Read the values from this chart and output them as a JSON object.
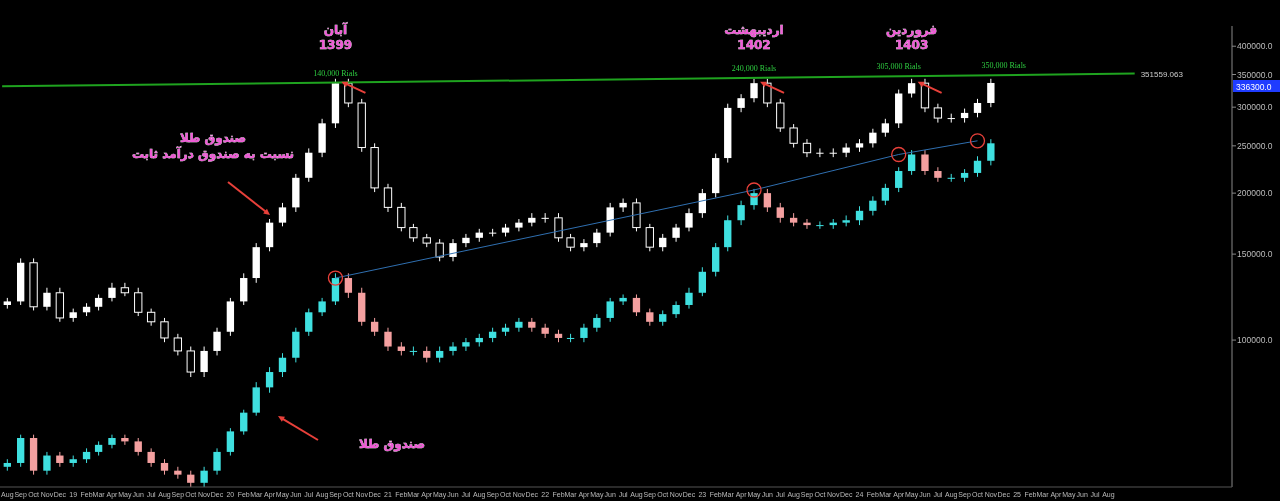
{
  "chart_data": {
    "type": "candlestick",
    "log": "y",
    "xlim": [
      "2018-07-15",
      "2026-05-15"
    ],
    "xticks": [
      {
        "value": "2018-08",
        "label": "Aug"
      },
      {
        "value": "2018-09",
        "label": "Sep"
      },
      {
        "value": "2018-10",
        "label": "Oct"
      },
      {
        "value": "2018-11",
        "label": "Nov"
      },
      {
        "value": "2018-12",
        "label": "Dec"
      },
      {
        "value": "2019-01",
        "label": "19"
      },
      {
        "value": "2019-02",
        "label": "Feb"
      },
      {
        "value": "2019-03",
        "label": "Mar"
      },
      {
        "value": "2019-04",
        "label": "Apr"
      },
      {
        "value": "2019-05",
        "label": "May"
      },
      {
        "value": "2019-06",
        "label": "Jun"
      },
      {
        "value": "2019-07",
        "label": "Jul"
      },
      {
        "value": "2019-08",
        "label": "Aug"
      },
      {
        "value": "2019-09",
        "label": "Sep"
      },
      {
        "value": "2019-10",
        "label": "Oct"
      },
      {
        "value": "2019-11",
        "label": "Nov"
      },
      {
        "value": "2019-12",
        "label": "Dec"
      },
      {
        "value": "2020-01",
        "label": "20"
      },
      {
        "value": "2020-02",
        "label": "Feb"
      },
      {
        "value": "2020-03",
        "label": "Mar"
      },
      {
        "value": "2020-04",
        "label": "Apr"
      },
      {
        "value": "2020-05",
        "label": "May"
      },
      {
        "value": "2020-06",
        "label": "Jun"
      },
      {
        "value": "2020-07",
        "label": "Jul"
      },
      {
        "value": "2020-08",
        "label": "Aug"
      },
      {
        "value": "2020-09",
        "label": "Sep"
      },
      {
        "value": "2020-10",
        "label": "Oct"
      },
      {
        "value": "2020-11",
        "label": "Nov"
      },
      {
        "value": "2020-12",
        "label": "Dec"
      },
      {
        "value": "2021-01",
        "label": "21"
      },
      {
        "value": "2021-02",
        "label": "Feb"
      },
      {
        "value": "2021-03",
        "label": "Mar"
      },
      {
        "value": "2021-04",
        "label": "Apr"
      },
      {
        "value": "2021-05",
        "label": "May"
      },
      {
        "value": "2021-06",
        "label": "Jun"
      },
      {
        "value": "2021-07",
        "label": "Jul"
      },
      {
        "value": "2021-08",
        "label": "Aug"
      },
      {
        "value": "2021-09",
        "label": "Sep"
      },
      {
        "value": "2021-10",
        "label": "Oct"
      },
      {
        "value": "2021-11",
        "label": "Nov"
      },
      {
        "value": "2021-12",
        "label": "Dec"
      },
      {
        "value": "2022-01",
        "label": "22"
      },
      {
        "value": "2022-02",
        "label": "Feb"
      },
      {
        "value": "2022-03",
        "label": "Mar"
      },
      {
        "value": "2022-04",
        "label": "Apr"
      },
      {
        "value": "2022-05",
        "label": "May"
      },
      {
        "value": "2022-06",
        "label": "Jun"
      },
      {
        "value": "2022-07",
        "label": "Jul"
      },
      {
        "value": "2022-08",
        "label": "Aug"
      },
      {
        "value": "2022-09",
        "label": "Sep"
      },
      {
        "value": "2022-10",
        "label": "Oct"
      },
      {
        "value": "2022-11",
        "label": "Nov"
      },
      {
        "value": "2022-12",
        "label": "Dec"
      },
      {
        "value": "2023-01",
        "label": "23"
      },
      {
        "value": "2023-02",
        "label": "Feb"
      },
      {
        "value": "2023-03",
        "label": "Mar"
      },
      {
        "value": "2023-04",
        "label": "Apr"
      },
      {
        "value": "2023-05",
        "label": "May"
      },
      {
        "value": "2023-06",
        "label": "Jun"
      },
      {
        "value": "2023-07",
        "label": "Jul"
      },
      {
        "value": "2023-08",
        "label": "Aug"
      },
      {
        "value": "2023-09",
        "label": "Sep"
      },
      {
        "value": "2023-10",
        "label": "Oct"
      },
      {
        "value": "2023-11",
        "label": "Nov"
      },
      {
        "value": "2023-12",
        "label": "Dec"
      },
      {
        "value": "2024-01",
        "label": "24"
      },
      {
        "value": "2024-02",
        "label": "Feb"
      },
      {
        "value": "2024-03",
        "label": "Mar"
      },
      {
        "value": "2024-04",
        "label": "Apr"
      },
      {
        "value": "2024-05",
        "label": "May"
      },
      {
        "value": "2024-06",
        "label": "Jun"
      },
      {
        "value": "2024-07",
        "label": "Jul"
      },
      {
        "value": "2024-08",
        "label": "Aug"
      },
      {
        "value": "2024-09",
        "label": "Sep"
      },
      {
        "value": "2024-10",
        "label": "Oct"
      },
      {
        "value": "2024-11",
        "label": "Nov"
      },
      {
        "value": "2024-12",
        "label": "Dec"
      },
      {
        "value": "2025-01",
        "label": "25"
      },
      {
        "value": "2025-02",
        "label": "Feb"
      },
      {
        "value": "2025-03",
        "label": "Mar"
      },
      {
        "value": "2025-04",
        "label": "Apr"
      },
      {
        "value": "2025-05",
        "label": "May"
      },
      {
        "value": "2025-06",
        "label": "Jun"
      },
      {
        "value": "2025-07",
        "label": "Jul"
      },
      {
        "value": "2025-08",
        "label": "Aug"
      }
    ],
    "ylim": [
      50000,
      440000
    ],
    "yticks": [
      {
        "value": 100000,
        "label": "100000.0"
      },
      {
        "value": 150000,
        "label": "150000.0"
      },
      {
        "value": 200000,
        "label": "200000.0"
      },
      {
        "value": 250000,
        "label": "250000.0"
      },
      {
        "value": 300000,
        "label": "300000.0"
      },
      {
        "value": 350000,
        "label": "350000.0"
      },
      {
        "value": 400000,
        "label": "400000.0"
      }
    ],
    "x": [
      "2018-08",
      "2018-09",
      "2018-10",
      "2018-11",
      "2018-12",
      "2019-01",
      "2019-02",
      "2019-03",
      "2019-04",
      "2019-05",
      "2019-06",
      "2019-07",
      "2019-08",
      "2019-09",
      "2019-10",
      "2019-11",
      "2019-12",
      "2020-01",
      "2020-02",
      "2020-03",
      "2020-04",
      "2020-05",
      "2020-06",
      "2020-07",
      "2020-08",
      "2020-09",
      "2020-10",
      "2020-11",
      "2020-12",
      "2021-01",
      "2021-02",
      "2021-03",
      "2021-04",
      "2021-05",
      "2021-06",
      "2021-07",
      "2021-08",
      "2021-09",
      "2021-10",
      "2021-11",
      "2021-12",
      "2022-01",
      "2022-02",
      "2022-03",
      "2022-04",
      "2022-05",
      "2022-06",
      "2022-07",
      "2022-08",
      "2022-09",
      "2022-10",
      "2022-11",
      "2022-12",
      "2023-01",
      "2023-02",
      "2023-03",
      "2023-04",
      "2023-05",
      "2023-06",
      "2023-07",
      "2023-08",
      "2023-09",
      "2023-10",
      "2023-11",
      "2023-12",
      "2024-01",
      "2024-02",
      "2024-03",
      "2024-04",
      "2024-05",
      "2024-06",
      "2024-07",
      "2024-08",
      "2024-09",
      "2024-10",
      "2024-11"
    ],
    "series": [
      {
        "color": "#ffffff",
        "ohlc": [
          [
            118000,
            122000,
            116000,
            120000
          ],
          [
            120000,
            147000,
            118000,
            144000
          ],
          [
            144000,
            147000,
            115000,
            117000
          ],
          [
            117000,
            128000,
            115000,
            125000
          ],
          [
            125000,
            128000,
            109000,
            111000
          ],
          [
            111000,
            116000,
            109000,
            114000
          ],
          [
            114000,
            119000,
            112000,
            117000
          ],
          [
            117000,
            124000,
            115000,
            122000
          ],
          [
            122000,
            131000,
            120000,
            128000
          ],
          [
            128000,
            131000,
            123000,
            125000
          ],
          [
            125000,
            128000,
            112000,
            114000
          ],
          [
            114000,
            116000,
            107000,
            109000
          ],
          [
            109000,
            111000,
            99000,
            101000
          ],
          [
            101000,
            103000,
            93000,
            95000
          ],
          [
            95000,
            97000,
            84000,
            86000
          ],
          [
            86000,
            97000,
            84000,
            95000
          ],
          [
            95000,
            106000,
            93000,
            104000
          ],
          [
            104000,
            122000,
            102000,
            120000
          ],
          [
            120000,
            137000,
            118000,
            134000
          ],
          [
            134000,
            158000,
            131000,
            155000
          ],
          [
            155000,
            177000,
            152000,
            174000
          ],
          [
            174000,
            191000,
            171000,
            187000
          ],
          [
            187000,
            219000,
            183000,
            215000
          ],
          [
            215000,
            247000,
            211000,
            242000
          ],
          [
            242000,
            284000,
            237000,
            278000
          ],
          [
            278000,
            343000,
            272000,
            336000
          ],
          [
            336000,
            343000,
            300000,
            306000
          ],
          [
            306000,
            312000,
            243000,
            248000
          ],
          [
            248000,
            253000,
            201000,
            205000
          ],
          [
            205000,
            209000,
            183000,
            187000
          ],
          [
            187000,
            191000,
            167000,
            170000
          ],
          [
            170000,
            173000,
            159000,
            162000
          ],
          [
            162000,
            165000,
            155000,
            158000
          ],
          [
            158000,
            161000,
            145000,
            148000
          ],
          [
            148000,
            161000,
            145000,
            158000
          ],
          [
            158000,
            165000,
            155000,
            162000
          ],
          [
            162000,
            169000,
            159000,
            166000
          ],
          [
            166000,
            169000,
            163000,
            166000
          ],
          [
            166000,
            173000,
            163000,
            170000
          ],
          [
            170000,
            177000,
            167000,
            174000
          ],
          [
            174000,
            182000,
            171000,
            178000
          ],
          [
            178000,
            182000,
            174000,
            178000
          ],
          [
            178000,
            182000,
            159000,
            162000
          ],
          [
            162000,
            165000,
            152000,
            155000
          ],
          [
            155000,
            161000,
            152000,
            158000
          ],
          [
            158000,
            169000,
            155000,
            166000
          ],
          [
            166000,
            191000,
            163000,
            187000
          ],
          [
            187000,
            195000,
            183000,
            191000
          ],
          [
            191000,
            195000,
            167000,
            170000
          ],
          [
            170000,
            173000,
            152000,
            155000
          ],
          [
            155000,
            165000,
            152000,
            162000
          ],
          [
            162000,
            173000,
            159000,
            170000
          ],
          [
            170000,
            186000,
            167000,
            182000
          ],
          [
            182000,
            204000,
            178000,
            200000
          ],
          [
            200000,
            241000,
            196000,
            236000
          ],
          [
            236000,
            305000,
            231000,
            299000
          ],
          [
            299000,
            319000,
            293000,
            313000
          ],
          [
            313000,
            343000,
            307000,
            336000
          ],
          [
            336000,
            343000,
            300000,
            306000
          ],
          [
            306000,
            312000,
            267000,
            272000
          ],
          [
            272000,
            277000,
            248000,
            253000
          ],
          [
            253000,
            258000,
            237000,
            242000
          ],
          [
            242000,
            247000,
            237000,
            242000
          ],
          [
            242000,
            247000,
            237000,
            242000
          ],
          [
            242000,
            253000,
            237000,
            248000
          ],
          [
            248000,
            258000,
            243000,
            253000
          ],
          [
            253000,
            271000,
            248000,
            266000
          ],
          [
            266000,
            284000,
            261000,
            278000
          ],
          [
            278000,
            326000,
            272000,
            320000
          ],
          [
            320000,
            343000,
            314000,
            336000
          ],
          [
            336000,
            343000,
            293000,
            299000
          ],
          [
            299000,
            305000,
            279000,
            285000
          ],
          [
            285000,
            291000,
            279000,
            285000
          ],
          [
            285000,
            298000,
            279000,
            292000
          ],
          [
            292000,
            312000,
            286000,
            306000
          ],
          [
            306000,
            343000,
            300000,
            336300
          ]
        ]
      },
      {
        "colors": [
          "#3fe0e0",
          "#3fe0e0",
          "#f4a0a0",
          "#3fe0e0",
          "#f4a0a0",
          "#3fe0e0",
          "#3fe0e0",
          "#3fe0e0",
          "#3fe0e0",
          "#f4a0a0",
          "#f4a0a0",
          "#f4a0a0",
          "#f4a0a0",
          "#f4a0a0",
          "#f4a0a0",
          "#3fe0e0",
          "#3fe0e0",
          "#3fe0e0",
          "#3fe0e0",
          "#3fe0e0",
          "#3fe0e0",
          "#3fe0e0",
          "#3fe0e0",
          "#3fe0e0",
          "#3fe0e0",
          "#3fe0e0",
          "#f4a0a0",
          "#f4a0a0",
          "#f4a0a0",
          "#f4a0a0",
          "#f4a0a0",
          "#3fe0e0",
          "#f4a0a0",
          "#3fe0e0",
          "#3fe0e0",
          "#3fe0e0",
          "#3fe0e0",
          "#3fe0e0",
          "#3fe0e0",
          "#3fe0e0",
          "#f4a0a0",
          "#f4a0a0",
          "#f4a0a0",
          "#3fe0e0",
          "#3fe0e0",
          "#3fe0e0",
          "#3fe0e0",
          "#3fe0e0",
          "#f4a0a0",
          "#f4a0a0",
          "#3fe0e0",
          "#3fe0e0",
          "#3fe0e0",
          "#3fe0e0",
          "#3fe0e0",
          "#3fe0e0",
          "#3fe0e0",
          "#3fe0e0",
          "#f4a0a0",
          "#f4a0a0",
          "#f4a0a0",
          "#f4a0a0",
          "#3fe0e0",
          "#3fe0e0",
          "#3fe0e0",
          "#3fe0e0",
          "#3fe0e0",
          "#3fe0e0",
          "#3fe0e0",
          "#3fe0e0",
          "#f4a0a0",
          "#f4a0a0",
          "#3fe0e0",
          "#3fe0e0",
          "#3fe0e0",
          "#3fe0e0"
        ],
        "ohlc": [
          [
            55000,
            57000,
            54000,
            56000
          ],
          [
            56000,
            64000,
            55000,
            63000
          ],
          [
            63000,
            64000,
            53000,
            54000
          ],
          [
            54000,
            59000,
            53000,
            58000
          ],
          [
            58000,
            59000,
            55000,
            56000
          ],
          [
            56000,
            58000,
            55000,
            57000
          ],
          [
            57000,
            60000,
            56000,
            59000
          ],
          [
            59000,
            62000,
            58000,
            61000
          ],
          [
            61000,
            64000,
            60000,
            63000
          ],
          [
            63000,
            64000,
            61000,
            62000
          ],
          [
            62000,
            63000,
            58000,
            59000
          ],
          [
            59000,
            60000,
            55000,
            56000
          ],
          [
            56000,
            57000,
            53000,
            54000
          ],
          [
            54000,
            55000,
            52000,
            53000
          ],
          [
            53000,
            54000,
            50000,
            51000
          ],
          [
            51000,
            55000,
            50000,
            54000
          ],
          [
            54000,
            60000,
            53000,
            59000
          ],
          [
            59000,
            66000,
            58000,
            65000
          ],
          [
            65000,
            72000,
            64000,
            71000
          ],
          [
            71000,
            82000,
            70000,
            80000
          ],
          [
            80000,
            88000,
            78000,
            86000
          ],
          [
            86000,
            94000,
            84000,
            92000
          ],
          [
            92000,
            106000,
            90000,
            104000
          ],
          [
            104000,
            116000,
            102000,
            114000
          ],
          [
            114000,
            122000,
            112000,
            120000
          ],
          [
            120000,
            137000,
            118000,
            134000
          ],
          [
            134000,
            137000,
            122000,
            125000
          ],
          [
            125000,
            128000,
            107000,
            109000
          ],
          [
            109000,
            111000,
            102000,
            104000
          ],
          [
            104000,
            106000,
            95000,
            97000
          ],
          [
            97000,
            99000,
            93000,
            95000
          ],
          [
            95000,
            97000,
            93000,
            95000
          ],
          [
            95000,
            97000,
            90000,
            92000
          ],
          [
            92000,
            97000,
            90000,
            95000
          ],
          [
            95000,
            99000,
            93000,
            97000
          ],
          [
            97000,
            101000,
            95000,
            99000
          ],
          [
            99000,
            103000,
            97000,
            101000
          ],
          [
            101000,
            106000,
            99000,
            104000
          ],
          [
            104000,
            108000,
            102000,
            106000
          ],
          [
            106000,
            111000,
            104000,
            109000
          ],
          [
            109000,
            111000,
            104000,
            106000
          ],
          [
            106000,
            108000,
            101000,
            103000
          ],
          [
            103000,
            105000,
            99000,
            101000
          ],
          [
            101000,
            103000,
            99000,
            101000
          ],
          [
            101000,
            108000,
            99000,
            106000
          ],
          [
            106000,
            113000,
            104000,
            111000
          ],
          [
            111000,
            122000,
            109000,
            120000
          ],
          [
            120000,
            124000,
            118000,
            122000
          ],
          [
            122000,
            124000,
            112000,
            114000
          ],
          [
            114000,
            116000,
            107000,
            109000
          ],
          [
            109000,
            115000,
            107000,
            113000
          ],
          [
            113000,
            120000,
            111000,
            118000
          ],
          [
            118000,
            128000,
            116000,
            125000
          ],
          [
            125000,
            141000,
            123000,
            138000
          ],
          [
            138000,
            158000,
            135000,
            155000
          ],
          [
            155000,
            180000,
            152000,
            176000
          ],
          [
            176000,
            193000,
            172000,
            189000
          ],
          [
            189000,
            204000,
            185000,
            200000
          ],
          [
            200000,
            204000,
            183000,
            187000
          ],
          [
            187000,
            191000,
            174000,
            178000
          ],
          [
            178000,
            182000,
            171000,
            174000
          ],
          [
            174000,
            177000,
            169000,
            172000
          ],
          [
            172000,
            175000,
            169000,
            172000
          ],
          [
            172000,
            177000,
            169000,
            174000
          ],
          [
            174000,
            180000,
            171000,
            176000
          ],
          [
            176000,
            188000,
            172000,
            184000
          ],
          [
            184000,
            197000,
            180000,
            193000
          ],
          [
            193000,
            209000,
            189000,
            205000
          ],
          [
            205000,
            226000,
            201000,
            222000
          ],
          [
            222000,
            245000,
            218000,
            240000
          ],
          [
            240000,
            245000,
            218000,
            222000
          ],
          [
            222000,
            226000,
            211000,
            215000
          ],
          [
            215000,
            219000,
            211000,
            215000
          ],
          [
            215000,
            224000,
            211000,
            220000
          ],
          [
            220000,
            238000,
            216000,
            233000
          ],
          [
            233000,
            258000,
            228000,
            253000
          ]
        ]
      },
      {
        "type": "line",
        "color": "#2f6fb0",
        "marker": "circle",
        "x": [
          "2020-09",
          "2023-05",
          "2024-04",
          "2024-10"
        ],
        "values": [
          134000,
          203000,
          240000,
          256000
        ]
      },
      {
        "type": "line",
        "color": "#1fa31f",
        "x": [
          "2018-07-20",
          "2025-10-01"
        ],
        "values": [
          331000,
          351559.063
        ],
        "value_labels": [
          null,
          "351559.063"
        ]
      }
    ],
    "annotations": [
      "صندوق طلا\nنسبت به صندوق درآمد ثابت",
      "صندوق طلا",
      {
        "text": "آبان\n1399",
        "x": "2020-09",
        "y": 343000
      },
      {
        "text": "اردیبهشت\n1402",
        "x": "2023-05",
        "y": 343000
      },
      {
        "text": "فروردین\n1403",
        "x": "2024-05",
        "y": 343000
      },
      {
        "text": "140,000 Rials",
        "x": "2020-09",
        "y": 337000
      },
      {
        "text": "240,000 Rials",
        "x": "2023-05",
        "y": 344000
      },
      {
        "text": "305,000 Rials",
        "x": "2024-04",
        "y": 347000
      },
      {
        "text": "350,000 Rials",
        "x": "2024-12",
        "y": 349000
      },
      "336300.0"
    ]
  }
}
